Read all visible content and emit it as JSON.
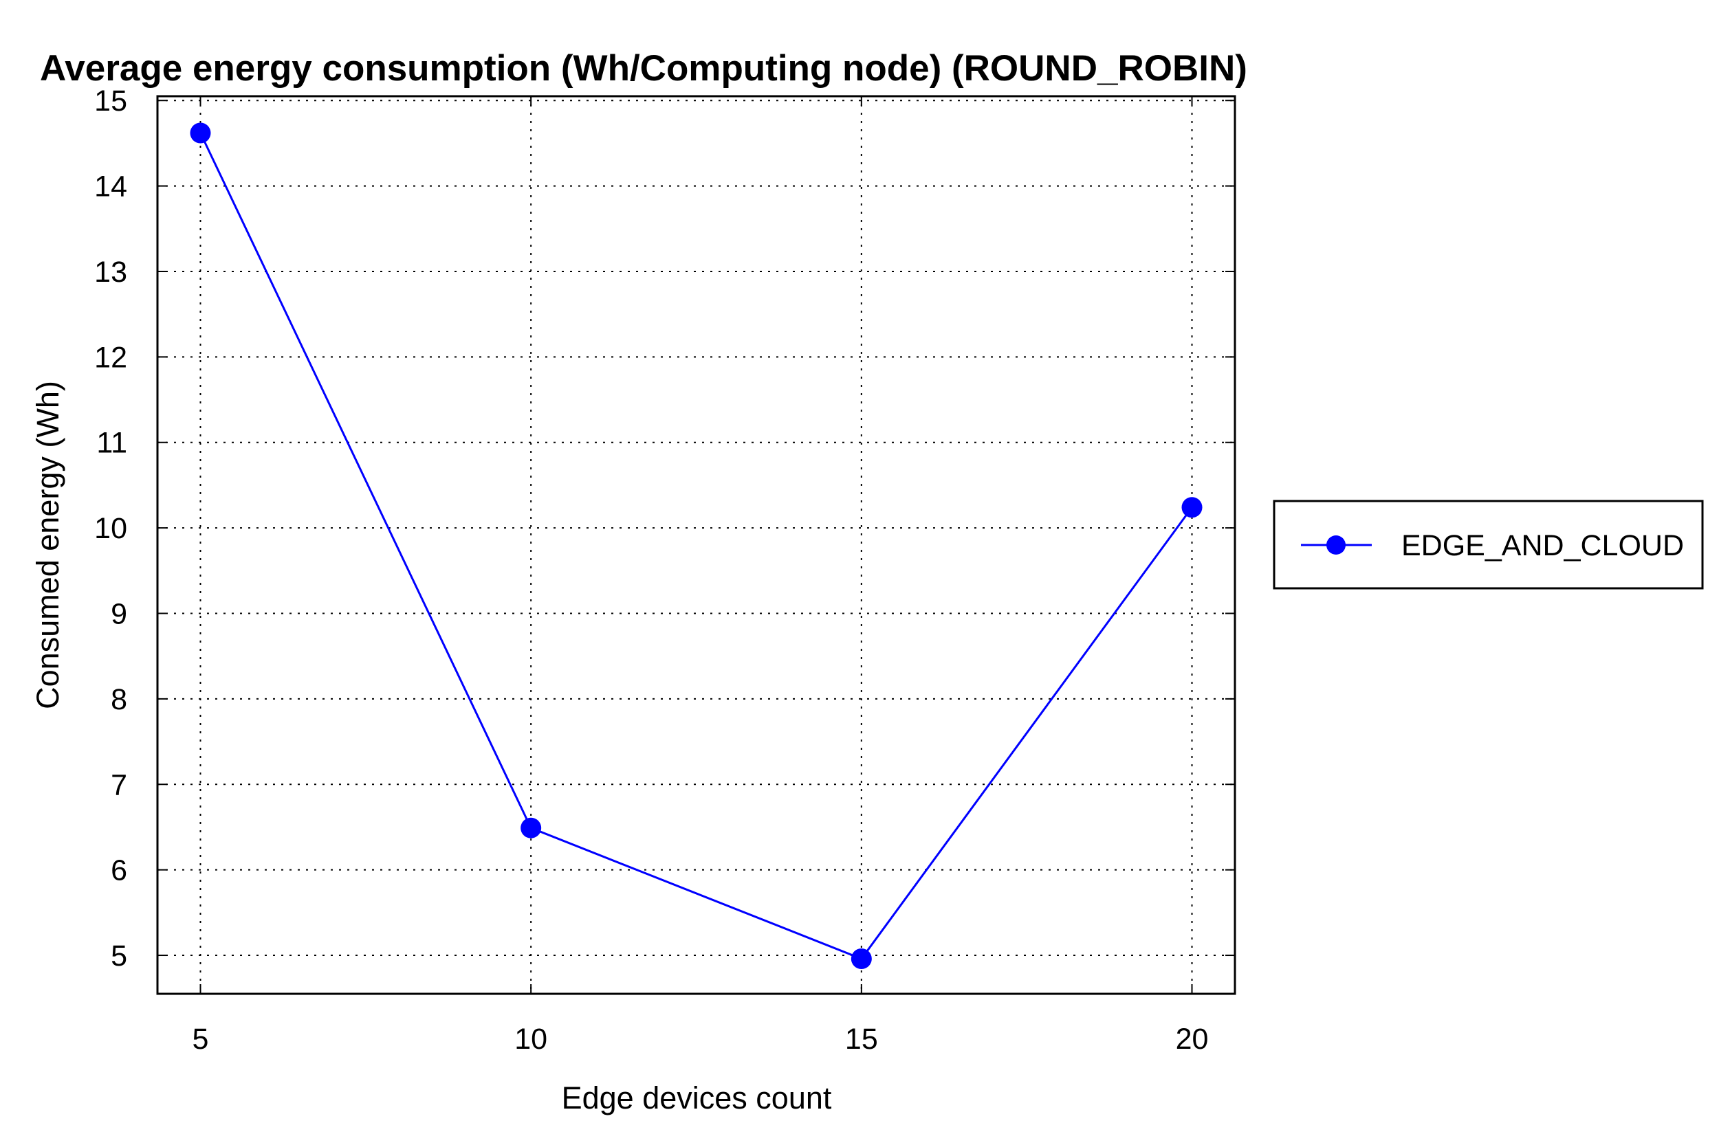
{
  "chart_data": {
    "type": "line",
    "title": "Average energy consumption (Wh/Computing node) (ROUND_ROBIN)",
    "xlabel": "Edge devices count",
    "ylabel": "Consumed energy (Wh)",
    "x": [
      5,
      10,
      15,
      20
    ],
    "x_ticks": [
      "5",
      "10",
      "15",
      "20"
    ],
    "y_ticks": [
      "5",
      "6",
      "7",
      "8",
      "9",
      "10",
      "11",
      "12",
      "13",
      "14",
      "15"
    ],
    "xlim": [
      4.35,
      20.65
    ],
    "ylim": [
      4.55,
      15.05
    ],
    "grid": true,
    "legend_position": "right",
    "series": [
      {
        "name": "EDGE_AND_CLOUD",
        "values": [
          14.62,
          6.49,
          4.96,
          10.24
        ],
        "color": "#0000ff",
        "marker": "circle"
      }
    ]
  }
}
